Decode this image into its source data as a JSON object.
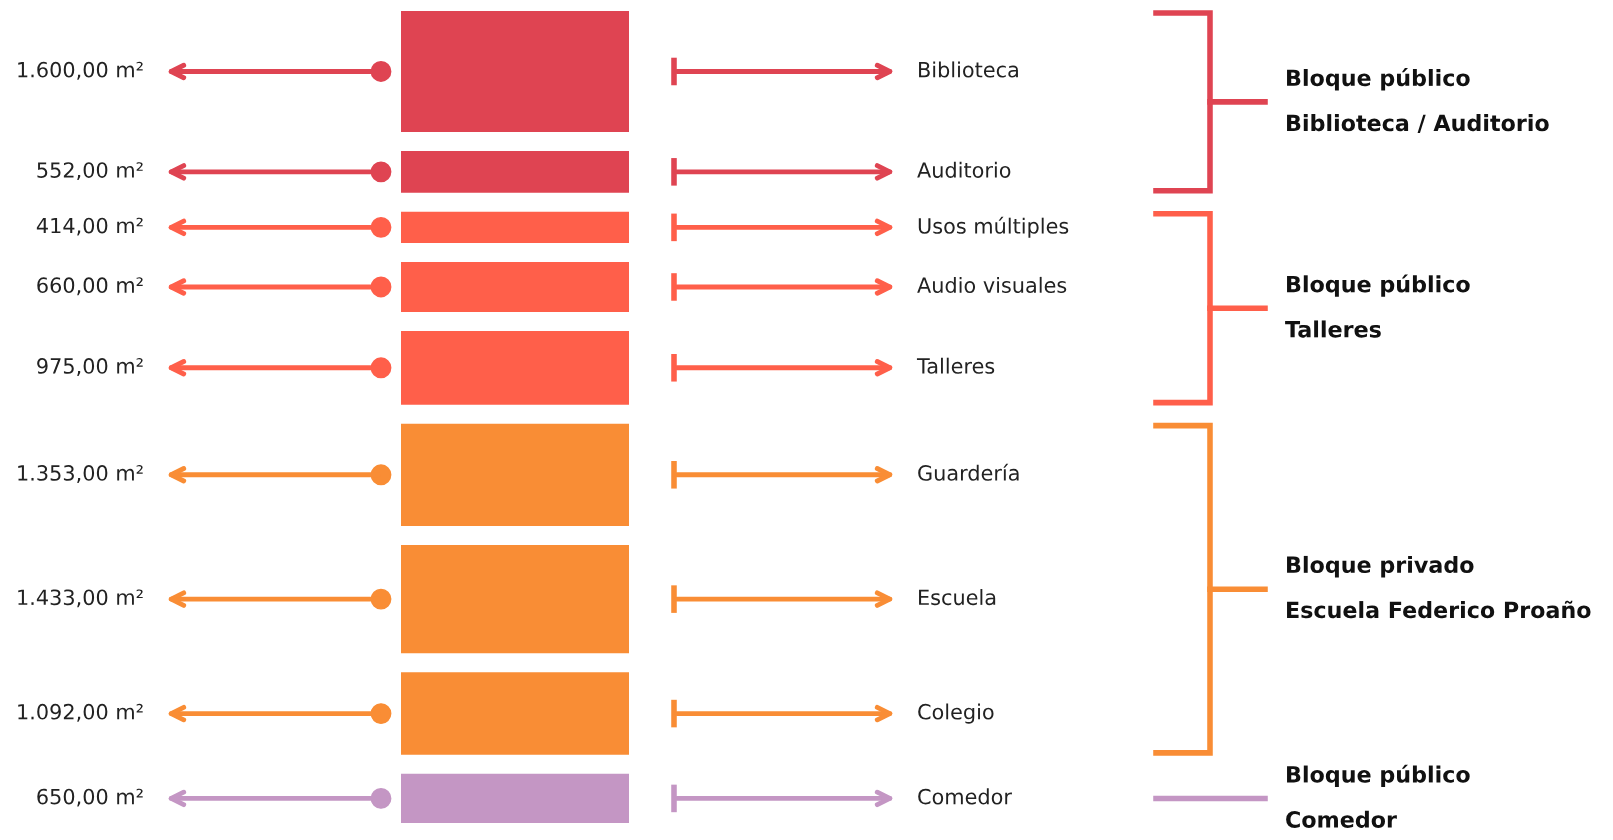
{
  "chart_data": {
    "type": "other",
    "categories": [
      "Biblioteca",
      "Auditorio",
      "Usos múltiples",
      "Audio visuales",
      "Talleres",
      "Guardería",
      "Escuela",
      "Colegio",
      "Comedor"
    ],
    "series": [
      {
        "name": "Bloque público\nBiblioteca / Auditorio",
        "color": "#df4452",
        "values": [
          1600,
          552,
          null,
          null,
          null,
          null,
          null,
          null,
          null
        ],
        "value_labels": [
          "1.600,00 m²",
          "552,00 m²",
          null,
          null,
          null,
          null,
          null,
          null,
          null
        ]
      },
      {
        "name": "Bloque público\nTalleres",
        "color": "#ff5f4a",
        "values": [
          null,
          null,
          414,
          660,
          975,
          null,
          null,
          null,
          null
        ],
        "value_labels": [
          null,
          null,
          "414,00 m²",
          "660,00 m²",
          "975,00 m²",
          null,
          null,
          null,
          null
        ]
      },
      {
        "name": "Bloque privado\nEscuela Federico Proaño",
        "color": "#f98d35",
        "values": [
          null,
          null,
          null,
          null,
          null,
          1353,
          1433,
          1092,
          null
        ],
        "value_labels": [
          null,
          null,
          null,
          null,
          null,
          "1.353,00 m²",
          "1.433,00 m²",
          "1.092,00 m²",
          null
        ]
      },
      {
        "name": "Bloque público\nComedor",
        "color": "#c496c4",
        "values": [
          null,
          null,
          null,
          null,
          null,
          null,
          null,
          null,
          650
        ],
        "value_labels": [
          null,
          null,
          null,
          null,
          null,
          null,
          null,
          null,
          "650,00 m²"
        ]
      }
    ]
  }
}
